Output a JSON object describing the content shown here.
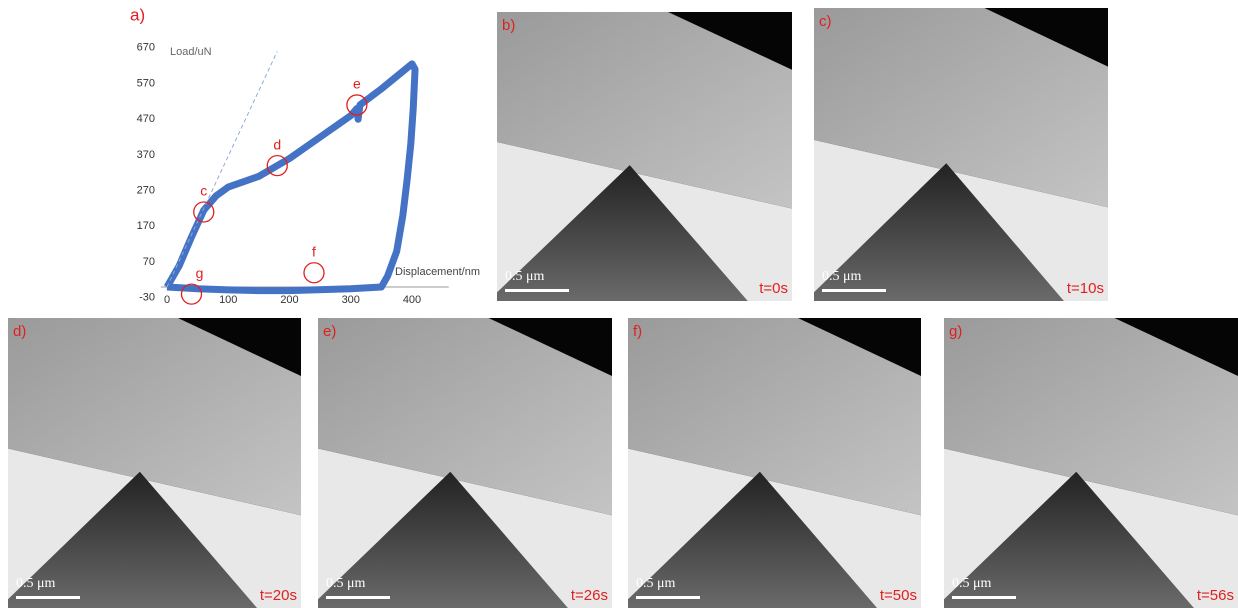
{
  "chart_data": {
    "type": "line",
    "title": "a)",
    "y_label": "Load/uN",
    "x_label": "Displacement/nm",
    "xlim": [
      -10,
      460
    ],
    "ylim": [
      -30,
      670
    ],
    "xticks": [
      0,
      100,
      200,
      300,
      400
    ],
    "yticks": [
      -30,
      70,
      170,
      270,
      370,
      470,
      570,
      670
    ],
    "series": [
      {
        "color": "#4472c4",
        "x": [
          0,
          20,
          40,
          60,
          80,
          100,
          150,
          200,
          250,
          300,
          310,
          312,
          315,
          350,
          400,
          405,
          402,
          398,
          392,
          385,
          375,
          360,
          350,
          300,
          240,
          200,
          150,
          100,
          50,
          0
        ],
        "values": [
          0,
          60,
          140,
          215,
          255,
          280,
          310,
          360,
          420,
          480,
          500,
          470,
          510,
          555,
          625,
          610,
          500,
          400,
          300,
          200,
          100,
          30,
          0,
          -5,
          -8,
          -10,
          -10,
          -8,
          -5,
          0
        ]
      },
      {
        "color": "#8faadc",
        "dash": true,
        "x": [
          0,
          180
        ],
        "values": [
          0,
          660
        ]
      }
    ],
    "annotations": [
      {
        "label": "c",
        "x": 60,
        "y": 210
      },
      {
        "label": "d",
        "x": 180,
        "y": 340
      },
      {
        "label": "e",
        "x": 310,
        "y": 510
      },
      {
        "label": "f",
        "x": 240,
        "y": 40
      },
      {
        "label": "g",
        "x": 40,
        "y": -20
      }
    ]
  },
  "panels": [
    {
      "label": "b)",
      "time": "t=0s",
      "scale": "0.5 μm"
    },
    {
      "label": "c)",
      "time": "t=10s",
      "scale": "0.5 μm"
    },
    {
      "label": "d)",
      "time": "t=20s",
      "scale": "0.5 μm"
    },
    {
      "label": "e)",
      "time": "t=26s",
      "scale": "0.5 μm"
    },
    {
      "label": "f)",
      "time": "t=50s",
      "scale": "0.5 μm"
    },
    {
      "label": "g)",
      "time": "t=56s",
      "scale": "0.5 μm"
    }
  ]
}
